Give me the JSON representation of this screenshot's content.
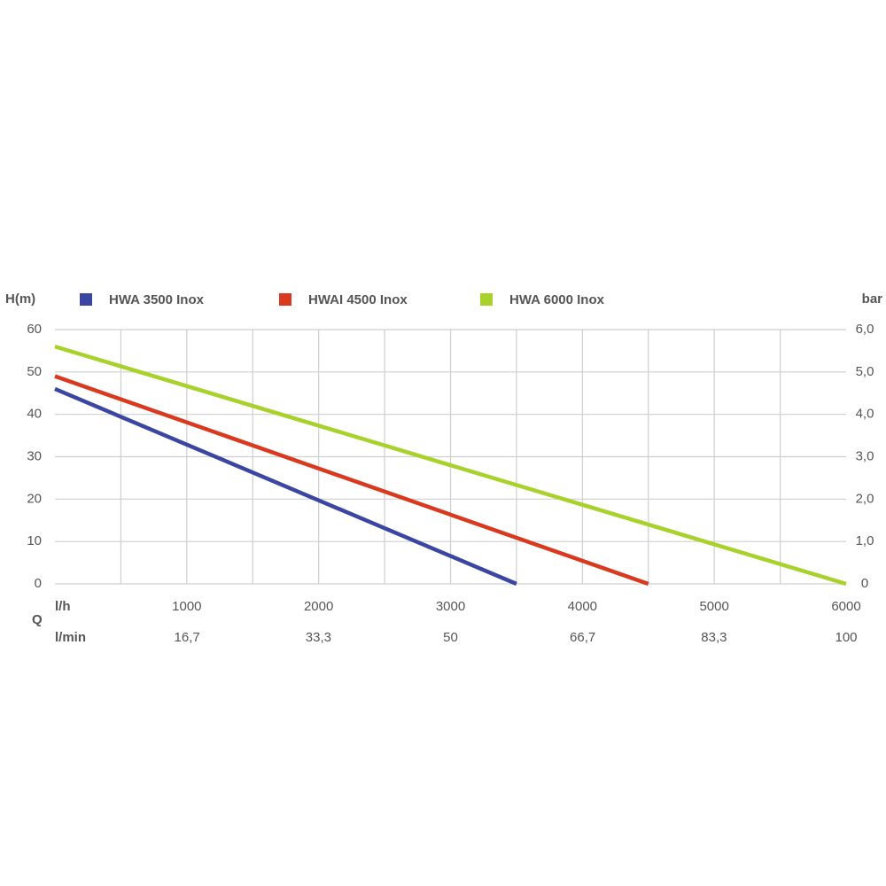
{
  "chart_data": {
    "type": "line",
    "y_label": "H(m)",
    "y2_label": "bar",
    "x_label": "Q",
    "x_unit": "l/h",
    "x2_unit": "l/min",
    "xlim": [
      0,
      6000
    ],
    "xticks": [
      1000,
      2000,
      3000,
      4000,
      5000,
      6000
    ],
    "x_gridlines": [
      500,
      1000,
      1500,
      2000,
      2500,
      3000,
      3500,
      4000,
      4500,
      5000,
      5500
    ],
    "x2lim": [
      0,
      100
    ],
    "x2ticks": [
      {
        "value": 16.7,
        "label": "16,7"
      },
      {
        "value": 33.3,
        "label": "33,3"
      },
      50,
      {
        "value": 66.7,
        "label": "66,7"
      },
      {
        "value": 83.3,
        "label": "83,3"
      },
      100
    ],
    "ylim": [
      0,
      60
    ],
    "yticks": [
      0,
      10,
      20,
      30,
      40,
      50,
      60
    ],
    "y2lim": [
      0,
      6
    ],
    "y2ticks": [
      0,
      {
        "value": 1,
        "label": "1,0"
      },
      {
        "value": 2,
        "label": "2,0"
      },
      {
        "value": 3,
        "label": "3,0"
      },
      {
        "value": 4,
        "label": "4,0"
      },
      {
        "value": 5,
        "label": "5,0"
      },
      {
        "value": 6,
        "label": "6,0"
      }
    ],
    "grid": true,
    "legend": "top",
    "series": [
      {
        "name": "HWA 3500 Inox",
        "color": "#3b46a3",
        "x": [
          0,
          3500
        ],
        "values": [
          46,
          0
        ]
      },
      {
        "name": "HWAI 4500 Inox",
        "color": "#d93a1f",
        "x": [
          0,
          4500
        ],
        "values": [
          49,
          0
        ]
      },
      {
        "name": "HWA 6000 Inox",
        "color": "#a9d12b",
        "x": [
          0,
          6000
        ],
        "values": [
          56,
          0
        ]
      }
    ]
  }
}
